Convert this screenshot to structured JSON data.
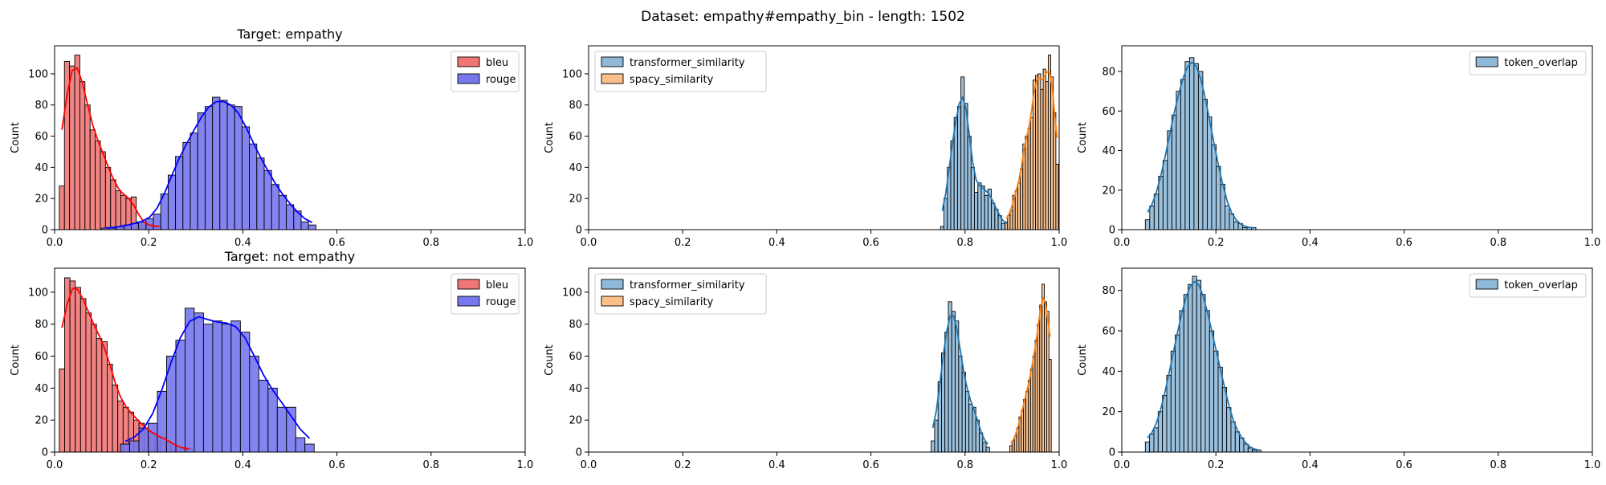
{
  "suptitle": "Dataset: empathy#empathy_bin - length: 1502",
  "chart_data": [
    {
      "type": "histogram",
      "row": 0,
      "col": 0,
      "title": "Target: empathy",
      "xlabel": "",
      "ylabel": "Count",
      "xlim": [
        0,
        1
      ],
      "ylim": [
        0,
        118
      ],
      "xticks": [
        0,
        0.2,
        0.4,
        0.6,
        0.8,
        1.0
      ],
      "xtick_labels": [
        "0.0",
        "0.2",
        "0.4",
        "0.6",
        "0.8",
        "1.0"
      ],
      "yticks": [
        0,
        20,
        40,
        60,
        80,
        100
      ],
      "ytick_labels": [
        "0",
        "20",
        "40",
        "60",
        "80",
        "100"
      ],
      "legend": "upper right",
      "series": [
        {
          "name": "bleu",
          "fill": "#f07575",
          "edge": "#000000",
          "kde": "#ff0000",
          "bin_start": 0.01,
          "bin_width": 0.0109,
          "counts": [
            28,
            108,
            105,
            112,
            95,
            80,
            64,
            57,
            50,
            40,
            32,
            25,
            22,
            20,
            21,
            5,
            4,
            3,
            2,
            2
          ]
        },
        {
          "name": "rouge",
          "fill": "#7777ee",
          "edge": "#000000",
          "kde": "#0000ff",
          "bin_start": 0.1,
          "bin_width": 0.0157,
          "counts": [
            1,
            1,
            2,
            3,
            4,
            5,
            7,
            10,
            23,
            35,
            47,
            56,
            62,
            75,
            79,
            85,
            83,
            80,
            79,
            66,
            55,
            46,
            38,
            29,
            22,
            16,
            12,
            5,
            3
          ]
        }
      ]
    },
    {
      "type": "histogram",
      "row": 0,
      "col": 1,
      "title": "",
      "xlabel": "",
      "ylabel": "Count",
      "xlim": [
        0,
        1
      ],
      "ylim": [
        0,
        118
      ],
      "xticks": [
        0,
        0.2,
        0.4,
        0.6,
        0.8,
        1.0
      ],
      "xtick_labels": [
        "0.0",
        "0.2",
        "0.4",
        "0.6",
        "0.8",
        "1.0"
      ],
      "yticks": [
        0,
        20,
        40,
        60,
        80,
        100
      ],
      "ytick_labels": [
        "0",
        "20",
        "40",
        "60",
        "80",
        "100"
      ],
      "legend": "upper left",
      "series": [
        {
          "name": "transformer_similarity",
          "fill": "#8fb9d9",
          "edge": "#000000",
          "kde": "#1f77b4",
          "bin_start": 0.748,
          "bin_width": 0.0072,
          "counts": [
            2,
            20,
            40,
            57,
            72,
            79,
            98,
            81,
            60,
            40,
            24,
            30,
            28,
            22,
            26,
            17,
            13,
            9,
            4,
            3
          ]
        },
        {
          "name": "spacy_similarity",
          "fill": "#fbbf89",
          "edge": "#000000",
          "kde": "#ff7f0e",
          "bin_start": 0.885,
          "bin_width": 0.0054,
          "counts": [
            5,
            9,
            12,
            22,
            25,
            30,
            39,
            55,
            60,
            65,
            72,
            96,
            99,
            100,
            90,
            103,
            95,
            112,
            98,
            75,
            42
          ]
        }
      ]
    },
    {
      "type": "histogram",
      "row": 0,
      "col": 2,
      "title": "",
      "xlabel": "",
      "ylabel": "Count",
      "xlim": [
        0,
        1
      ],
      "ylim": [
        0,
        93
      ],
      "xticks": [
        0,
        0.2,
        0.4,
        0.6,
        0.8,
        1.0
      ],
      "xtick_labels": [
        "0.0",
        "0.2",
        "0.4",
        "0.6",
        "0.8",
        "1.0"
      ],
      "yticks": [
        0,
        20,
        40,
        60,
        80
      ],
      "ytick_labels": [
        "0",
        "20",
        "40",
        "60",
        "80"
      ],
      "legend": "upper right",
      "series": [
        {
          "name": "token_overlap",
          "fill": "#8fb9d9",
          "edge": "#000000",
          "kde": "#1f77b4",
          "bin_start": 0.05,
          "bin_width": 0.0094,
          "counts": [
            5,
            12,
            18,
            27,
            35,
            50,
            58,
            70,
            76,
            85,
            87,
            84,
            80,
            66,
            57,
            43,
            32,
            23,
            12,
            8,
            4,
            3,
            1,
            1,
            1
          ]
        }
      ]
    },
    {
      "type": "histogram",
      "row": 1,
      "col": 0,
      "title": "Target: not empathy",
      "xlabel": "",
      "ylabel": "Count",
      "xlim": [
        0,
        1
      ],
      "ylim": [
        0,
        115
      ],
      "xticks": [
        0,
        0.2,
        0.4,
        0.6,
        0.8,
        1.0
      ],
      "xtick_labels": [
        "0.0",
        "0.2",
        "0.4",
        "0.6",
        "0.8",
        "1.0"
      ],
      "yticks": [
        0,
        20,
        40,
        60,
        80,
        100
      ],
      "ytick_labels": [
        "0",
        "20",
        "40",
        "60",
        "80",
        "100"
      ],
      "legend": "upper right",
      "series": [
        {
          "name": "bleu",
          "fill": "#f07575",
          "edge": "#000000",
          "kde": "#ff0000",
          "bin_start": 0.01,
          "bin_width": 0.0113,
          "counts": [
            52,
            109,
            107,
            103,
            96,
            87,
            80,
            71,
            69,
            55,
            42,
            32,
            28,
            25,
            20,
            18,
            14,
            12,
            10,
            9,
            7,
            5,
            3,
            2,
            2
          ]
        },
        {
          "name": "rouge",
          "fill": "#7777ee",
          "edge": "#000000",
          "kde": "#0000ff",
          "bin_start": 0.14,
          "bin_width": 0.0196,
          "counts": [
            5,
            7,
            15,
            18,
            38,
            60,
            70,
            90,
            87,
            80,
            82,
            80,
            82,
            75,
            60,
            45,
            40,
            28,
            28,
            9,
            5
          ]
        }
      ]
    },
    {
      "type": "histogram",
      "row": 1,
      "col": 1,
      "title": "",
      "xlabel": "",
      "ylabel": "Count",
      "xlim": [
        0,
        1
      ],
      "ylim": [
        0,
        115
      ],
      "xticks": [
        0,
        0.2,
        0.4,
        0.6,
        0.8,
        1.0
      ],
      "xtick_labels": [
        "0.0",
        "0.2",
        "0.4",
        "0.6",
        "0.8",
        "1.0"
      ],
      "yticks": [
        0,
        20,
        40,
        60,
        80,
        100
      ],
      "ytick_labels": [
        "0",
        "20",
        "40",
        "60",
        "80",
        "100"
      ],
      "legend": "upper left",
      "series": [
        {
          "name": "transformer_similarity",
          "fill": "#8fb9d9",
          "edge": "#000000",
          "kde": "#1f77b4",
          "bin_start": 0.728,
          "bin_width": 0.0073,
          "counts": [
            7,
            20,
            44,
            62,
            75,
            94,
            88,
            82,
            60,
            50,
            38,
            30,
            28,
            20,
            12,
            6,
            3
          ]
        },
        {
          "name": "spacy_similarity",
          "fill": "#fbbf89",
          "edge": "#000000",
          "kde": "#ff7f0e",
          "bin_start": 0.895,
          "bin_width": 0.0049,
          "counts": [
            4,
            7,
            10,
            15,
            22,
            26,
            33,
            38,
            45,
            52,
            60,
            70,
            80,
            92,
            105,
            94,
            88,
            58
          ]
        }
      ]
    },
    {
      "type": "histogram",
      "row": 1,
      "col": 2,
      "title": "",
      "xlabel": "",
      "ylabel": "Count",
      "xlim": [
        0,
        1
      ],
      "ylim": [
        0,
        91
      ],
      "xticks": [
        0,
        0.2,
        0.4,
        0.6,
        0.8,
        1.0
      ],
      "xtick_labels": [
        "0.0",
        "0.2",
        "0.4",
        "0.6",
        "0.8",
        "1.0"
      ],
      "yticks": [
        0,
        20,
        40,
        60,
        80
      ],
      "ytick_labels": [
        "0",
        "20",
        "40",
        "60",
        "80"
      ],
      "legend": "upper right",
      "series": [
        {
          "name": "token_overlap",
          "fill": "#8fb9d9",
          "edge": "#000000",
          "kde": "#1f77b4",
          "bin_start": 0.05,
          "bin_width": 0.0091,
          "counts": [
            5,
            9,
            12,
            20,
            28,
            38,
            50,
            58,
            70,
            78,
            83,
            87,
            85,
            78,
            70,
            60,
            50,
            42,
            32,
            22,
            15,
            10,
            7,
            4,
            2,
            1,
            1
          ]
        }
      ]
    }
  ]
}
